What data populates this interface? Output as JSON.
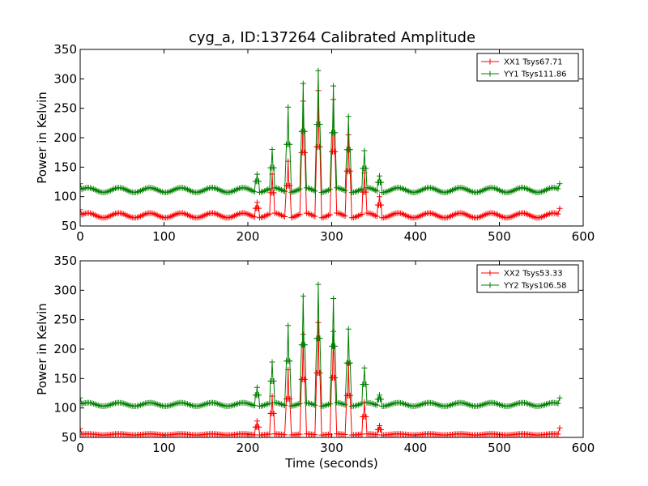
{
  "figure": {
    "title": "cyg_a, ID:137264 Calibrated Amplitude"
  },
  "colors": {
    "xx": "#ff0000",
    "yy": "#008000"
  },
  "chart_data": [
    {
      "type": "line",
      "panel": "top",
      "title": "cyg_a, ID:137264 Calibrated Amplitude",
      "xlabel": "",
      "ylabel": "Power in Kelvin",
      "xlim": [
        0,
        600
      ],
      "ylim": [
        50,
        350
      ],
      "xticks": [
        "0",
        "100",
        "200",
        "300",
        "400",
        "500",
        "600"
      ],
      "yticks": [
        "50",
        "100",
        "150",
        "200",
        "250",
        "300",
        "350"
      ],
      "grid": false,
      "legend_position": "top-right",
      "marker": "+",
      "series": [
        {
          "name": "XX1 Tsys67.71",
          "color": "#ff0000",
          "baseline": 68,
          "ripple": 4,
          "ripple_period": 37,
          "x_range": [
            0,
            572
          ],
          "step": 2,
          "end_values": [
            [
              0,
              78
            ],
            [
              572,
              80
            ]
          ],
          "peaks": [
            [
              211,
              90
            ],
            [
              229,
              138
            ],
            [
              248,
              160
            ],
            [
              266,
              262
            ],
            [
              284,
              280
            ],
            [
              302,
              265
            ],
            [
              320,
              205
            ],
            [
              339,
              140
            ],
            [
              357,
              100
            ]
          ]
        },
        {
          "name": "YY1 Tsys111.86",
          "color": "#008000",
          "baseline": 111,
          "ripple": 4,
          "ripple_period": 37,
          "x_range": [
            0,
            572
          ],
          "step": 2,
          "end_values": [
            [
              0,
              122
            ],
            [
              572,
              122
            ]
          ],
          "peaks": [
            [
              211,
              138
            ],
            [
              229,
              180
            ],
            [
              248,
              252
            ],
            [
              266,
              292
            ],
            [
              284,
              314
            ],
            [
              302,
              288
            ],
            [
              320,
              236
            ],
            [
              339,
              178
            ],
            [
              357,
              135
            ]
          ]
        }
      ]
    },
    {
      "type": "line",
      "panel": "bottom",
      "title": "",
      "xlabel": "Time (seconds)",
      "ylabel": "Power in Kelvin",
      "xlim": [
        0,
        600
      ],
      "ylim": [
        50,
        350
      ],
      "xticks": [
        "0",
        "100",
        "200",
        "300",
        "400",
        "500",
        "600"
      ],
      "yticks": [
        "50",
        "100",
        "150",
        "200",
        "250",
        "300",
        "350"
      ],
      "grid": false,
      "legend_position": "top-right",
      "marker": "+",
      "series": [
        {
          "name": "XX2 Tsys53.33",
          "color": "#ff0000",
          "baseline": 55,
          "ripple": 1,
          "ripple_period": 37,
          "x_range": [
            0,
            572
          ],
          "step": 2,
          "end_values": [
            [
              0,
              65
            ],
            [
              572,
              66
            ]
          ],
          "peaks": [
            [
              211,
              78
            ],
            [
              229,
              120
            ],
            [
              248,
              165
            ],
            [
              266,
              225
            ],
            [
              284,
              245
            ],
            [
              302,
              230
            ],
            [
              320,
              175
            ],
            [
              339,
              110
            ],
            [
              357,
              70
            ]
          ]
        },
        {
          "name": "YY2 Tsys106.58",
          "color": "#008000",
          "baseline": 106,
          "ripple": 3,
          "ripple_period": 37,
          "x_range": [
            0,
            572
          ],
          "step": 2,
          "end_values": [
            [
              0,
              117
            ],
            [
              572,
              117
            ]
          ],
          "peaks": [
            [
              211,
              135
            ],
            [
              229,
              178
            ],
            [
              248,
              240
            ],
            [
              266,
              290
            ],
            [
              284,
              310
            ],
            [
              302,
              286
            ],
            [
              320,
              234
            ],
            [
              339,
              168
            ],
            [
              357,
              122
            ]
          ]
        }
      ]
    }
  ]
}
